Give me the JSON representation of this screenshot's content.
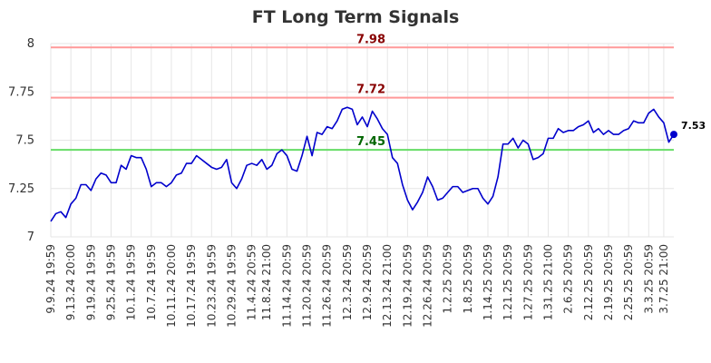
{
  "chart_data": {
    "type": "line",
    "title": "FT Long Term Signals",
    "xlabel": "",
    "ylabel": "",
    "ylim": [
      7,
      8
    ],
    "yticks": [
      "7",
      "7.25",
      "7.5",
      "7.75",
      "8"
    ],
    "ytick_values": [
      7,
      7.25,
      7.5,
      7.75,
      8
    ],
    "grid": true,
    "colors": {
      "line": "#0000cc",
      "upper": "#ff9999",
      "support": "#66dd66",
      "upper_text": "#880000",
      "support_text": "#006600",
      "grid": "#e6e6e6"
    },
    "x_labels": [
      "9.9.24 19:59",
      "9.13.24 20:00",
      "9.19.24 19:59",
      "9.25.24 19:59",
      "10.1.24 19:59",
      "10.7.24 19:59",
      "10.11.24 20:00",
      "10.17.24 19:59",
      "10.23.24 19:59",
      "10.29.24 19:59",
      "11.4.24 20:59",
      "11.8.24 21:00",
      "11.14.24 20:59",
      "11.20.24 20:59",
      "11.26.24 20:59",
      "12.3.24 20:59",
      "12.9.24 20:59",
      "12.13.24 21:00",
      "12.19.24 20:59",
      "12.26.24 20:59",
      "1.2.25 20:59",
      "1.8.25 20:59",
      "1.14.25 20:59",
      "1.21.25 20:59",
      "1.27.25 20:59",
      "1.31.25 21:00",
      "2.6.25 20:59",
      "2.12.25 20:59",
      "2.19.25 20:59",
      "2.25.25 20:59",
      "3.3.25 20:59",
      "3.7.25 21:00"
    ],
    "label_indices": [
      0,
      4,
      8,
      12,
      16,
      20,
      24,
      28,
      32,
      36,
      40,
      43,
      47,
      51,
      55,
      59,
      63,
      67,
      71,
      75,
      79,
      83,
      87,
      91,
      95,
      99,
      103,
      107,
      111,
      115,
      119,
      122
    ],
    "hlines": [
      {
        "value": 7.98,
        "label": "7.98",
        "kind": "upper"
      },
      {
        "value": 7.72,
        "label": "7.72",
        "kind": "upper"
      },
      {
        "value": 7.45,
        "label": "7.45",
        "kind": "support"
      }
    ],
    "series": [
      {
        "values": [
          7.08,
          7.12,
          7.13,
          7.1,
          7.17,
          7.2,
          7.27,
          7.27,
          7.24,
          7.3,
          7.33,
          7.32,
          7.28,
          7.28,
          7.37,
          7.35,
          7.42,
          7.41,
          7.41,
          7.35,
          7.26,
          7.28,
          7.28,
          7.26,
          7.28,
          7.32,
          7.33,
          7.38,
          7.38,
          7.42,
          7.4,
          7.38,
          7.36,
          7.35,
          7.36,
          7.4,
          7.28,
          7.25,
          7.3,
          7.37,
          7.38,
          7.37,
          7.4,
          7.35,
          7.37,
          7.43,
          7.45,
          7.42,
          7.35,
          7.34,
          7.42,
          7.52,
          7.42,
          7.54,
          7.53,
          7.57,
          7.56,
          7.6,
          7.66,
          7.67,
          7.66,
          7.58,
          7.62,
          7.57,
          7.65,
          7.61,
          7.56,
          7.53,
          7.41,
          7.38,
          7.27,
          7.19,
          7.14,
          7.18,
          7.23,
          7.31,
          7.26,
          7.19,
          7.2,
          7.23,
          7.26,
          7.26,
          7.23,
          7.24,
          7.25,
          7.25,
          7.2,
          7.17,
          7.21,
          7.31,
          7.48,
          7.48,
          7.51,
          7.46,
          7.5,
          7.48,
          7.4,
          7.41,
          7.43,
          7.51,
          7.51,
          7.56,
          7.54,
          7.55,
          7.55,
          7.57,
          7.58,
          7.6,
          7.54,
          7.56,
          7.53,
          7.55,
          7.53,
          7.53,
          7.55,
          7.56,
          7.6,
          7.59,
          7.59,
          7.64,
          7.66,
          7.62,
          7.59,
          7.49,
          7.53
        ]
      }
    ],
    "last_label": "7.53"
  }
}
